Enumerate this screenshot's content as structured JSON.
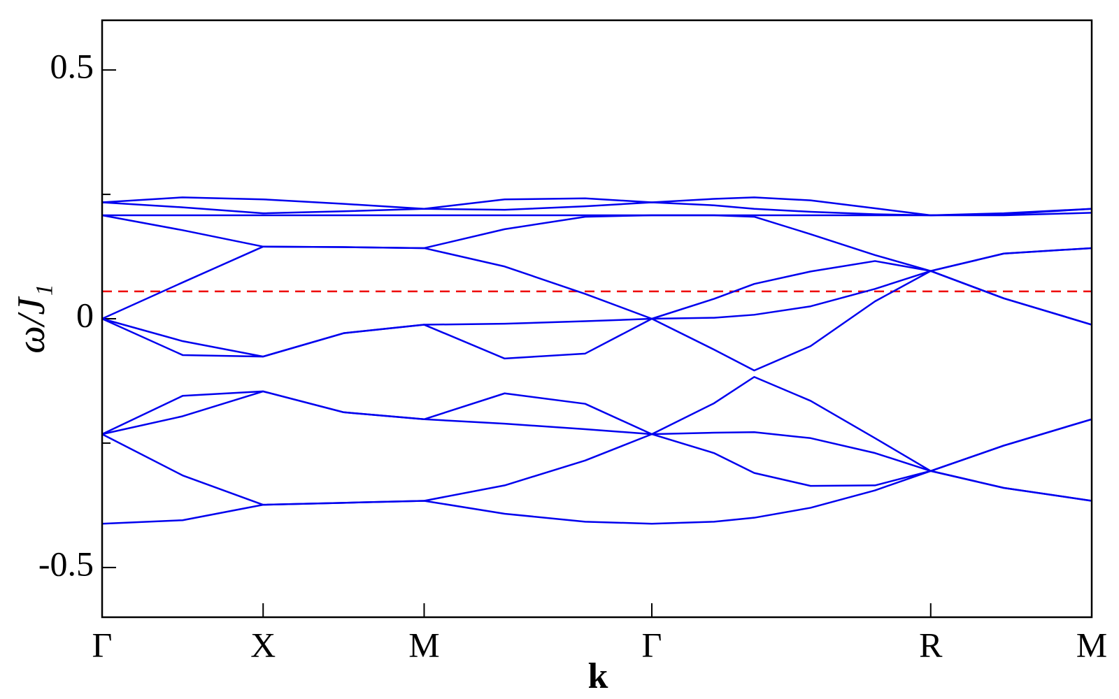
{
  "chart_data": {
    "type": "line",
    "xlabel": "k",
    "ylabel": "ω/J₁",
    "x": [
      0,
      0.5,
      1,
      1.5,
      2,
      2.5,
      3,
      3.414,
      3.8,
      4.05,
      4.4,
      4.8,
      5.146,
      5.6,
      6.146
    ],
    "series": [
      {
        "color": "#0000ee",
        "values": [
          0.234,
          0.244,
          0.24,
          0.231,
          0.221,
          0.24,
          0.242,
          0.234,
          0.241,
          0.244,
          0.238,
          0.222,
          0.208,
          0.212,
          0.221
        ]
      },
      {
        "color": "#0000ee",
        "values": [
          0.234,
          0.224,
          0.212,
          0.216,
          0.221,
          0.219,
          0.226,
          0.234,
          0.228,
          0.221,
          0.215,
          0.21,
          0.208,
          0.21,
          0.221
        ]
      },
      {
        "color": "#0000ee",
        "values": [
          0.208,
          0.208,
          0.208,
          0.208,
          0.208,
          0.208,
          0.208,
          0.208,
          0.208,
          0.208,
          0.208,
          0.208,
          0.208,
          0.208,
          0.213
        ]
      },
      {
        "color": "#0000ee",
        "values": [
          0.208,
          0.178,
          0.145,
          0.144,
          0.142,
          0.18,
          0.205,
          0.208,
          0.208,
          0.205,
          0.17,
          0.128,
          0.096,
          0.131,
          0.142
        ]
      },
      {
        "color": "#0000ee",
        "values": [
          0,
          0.073,
          0.145,
          0.144,
          0.142,
          0.105,
          0.05,
          0,
          0.04,
          0.07,
          0.095,
          0.116,
          0.096,
          0.131,
          0.142
        ]
      },
      {
        "color": "#0000ee",
        "values": [
          0,
          -0.045,
          -0.076,
          -0.029,
          -0.012,
          -0.01,
          -0.005,
          0,
          0.002,
          0.008,
          0.025,
          0.06,
          0.096,
          0.041,
          -0.012
        ]
      },
      {
        "color": "#0000ee",
        "values": [
          0,
          -0.073,
          -0.076,
          -0.029,
          -0.012,
          -0.08,
          -0.07,
          0,
          -0.062,
          -0.104,
          -0.055,
          0.035,
          0.096,
          0.041,
          -0.012
        ]
      },
      {
        "color": "#0000ee",
        "values": [
          -0.232,
          -0.155,
          -0.146,
          -0.188,
          -0.202,
          -0.15,
          -0.171,
          -0.232,
          -0.17,
          -0.117,
          -0.165,
          -0.24,
          -0.306,
          -0.255,
          -0.202
        ]
      },
      {
        "color": "#0000ee",
        "values": [
          -0.232,
          -0.196,
          -0.146,
          -0.188,
          -0.202,
          -0.211,
          -0.222,
          -0.232,
          -0.229,
          -0.228,
          -0.24,
          -0.27,
          -0.306,
          -0.255,
          -0.202
        ]
      },
      {
        "color": "#0000ee",
        "values": [
          -0.232,
          -0.315,
          -0.374,
          -0.37,
          -0.366,
          -0.335,
          -0.285,
          -0.232,
          -0.27,
          -0.31,
          -0.336,
          -0.335,
          -0.306,
          -0.34,
          -0.366
        ]
      },
      {
        "color": "#0000ee",
        "values": [
          -0.412,
          -0.405,
          -0.374,
          -0.37,
          -0.366,
          -0.392,
          -0.408,
          -0.412,
          -0.408,
          -0.4,
          -0.38,
          -0.345,
          -0.306,
          -0.34,
          -0.366
        ]
      }
    ],
    "hlines": [
      {
        "value": 0.055,
        "color": "#ee0000",
        "dashed": true
      }
    ],
    "xlim": [
      0,
      6.146
    ],
    "xticks": [
      {
        "value": 0,
        "label": "Γ"
      },
      {
        "value": 1,
        "label": "X"
      },
      {
        "value": 2,
        "label": "M"
      },
      {
        "value": 3.414,
        "label": "Γ"
      },
      {
        "value": 5.146,
        "label": "R"
      },
      {
        "value": 6.146,
        "label": "M"
      }
    ],
    "ylim": [
      -0.6,
      0.6
    ],
    "yticks": [
      -0.5,
      0,
      0.5
    ],
    "yminorticks": [
      -0.25,
      0.25
    ],
    "grid": false
  }
}
